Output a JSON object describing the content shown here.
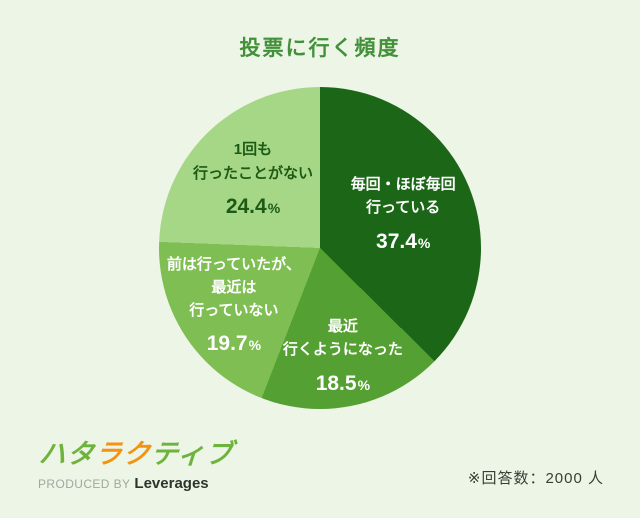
{
  "title": "投票に行く頻度",
  "footnote": "※回答数：2000 人",
  "logo": {
    "brand": "ハタラクティブ",
    "brand_segments": [
      {
        "text": "ハタ",
        "color": "#6db33c"
      },
      {
        "text": "ラク",
        "color": "#f29311"
      },
      {
        "text": "ティブ",
        "color": "#6db33c"
      }
    ],
    "produced_by": "PRODUCED BY",
    "company": "Leverages"
  },
  "colors": {
    "background": "#edf5e6",
    "title_green": "#42913a",
    "logo_green": "#6db33c",
    "logo_orange": "#f29311"
  },
  "chart_data": {
    "type": "pie",
    "title": "投票に行く頻度",
    "unit": "%",
    "start_angle_deg": 0,
    "direction": "clockwise",
    "legend_position": "inside",
    "slices": [
      {
        "label": "毎回・ほぼ毎回行っている",
        "label_lines": [
          "毎回・ほぼ毎回",
          "行っている"
        ],
        "value": 37.4,
        "color": "#1b6617",
        "text_color": "#ffffff",
        "label_radius_factor": 0.56
      },
      {
        "label": "最近行くようになった",
        "label_lines": [
          "最近",
          "行くようになった"
        ],
        "value": 18.5,
        "color": "#55a032",
        "text_color": "#ffffff",
        "label_radius_factor": 0.68
      },
      {
        "label": "前は行っていたが、最近は行っていない",
        "label_lines": [
          "前は行っていたが、",
          "最近は",
          "行っていない"
        ],
        "value": 19.7,
        "color": "#7fbe52",
        "text_color": "#ffffff",
        "label_radius_factor": 0.64
      },
      {
        "label": "1回も行ったことがない",
        "label_lines": [
          "1回も",
          "行ったことがない"
        ],
        "value": 24.4,
        "color": "#a6d786",
        "text_color": "#1c5a15",
        "label_radius_factor": 0.6
      }
    ]
  }
}
